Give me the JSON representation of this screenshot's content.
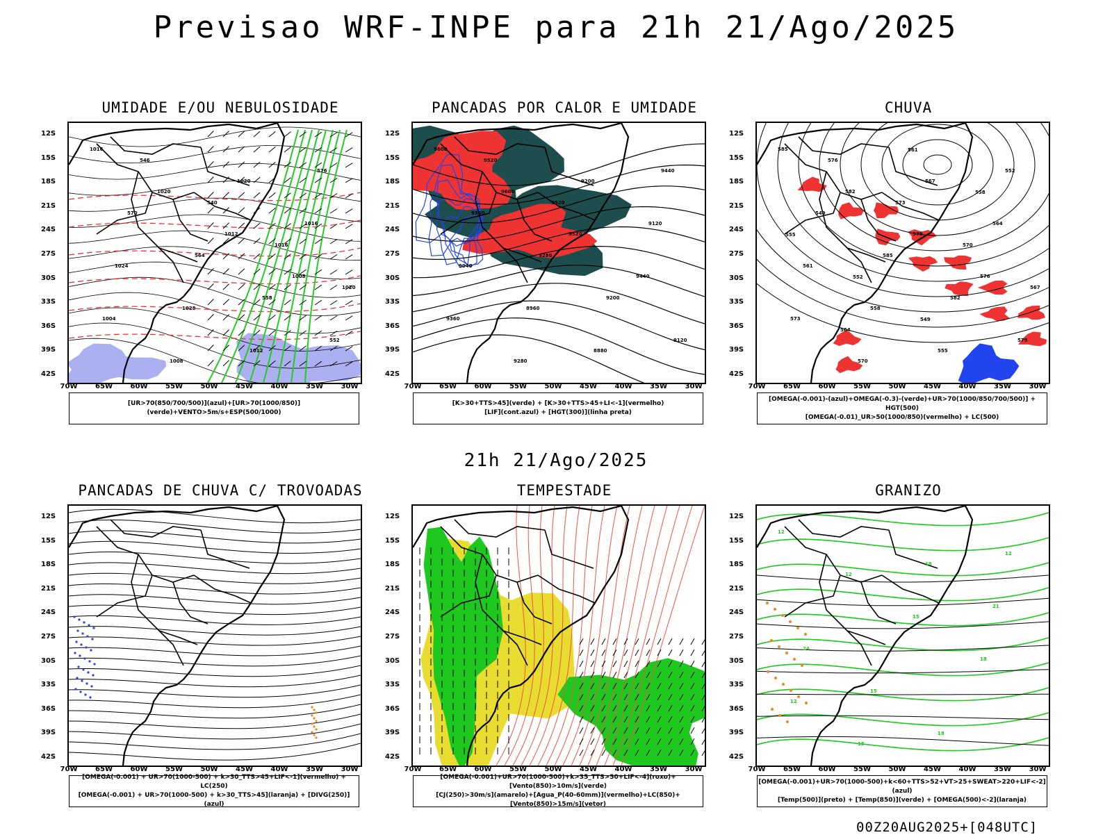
{
  "main_title": "Previsao WRF-INPE  para 21h 21/Ago/2025",
  "mid_title": "21h 21/Ago/2025",
  "footer": "00Z20AUG2025+[048UTC]",
  "axes": {
    "lat_labels": [
      "12S",
      "15S",
      "18S",
      "21S",
      "24S",
      "27S",
      "30S",
      "33S",
      "36S",
      "39S",
      "42S"
    ],
    "lon_labels": [
      "70W",
      "65W",
      "60W",
      "55W",
      "50W",
      "45W",
      "40W",
      "35W",
      "30W"
    ]
  },
  "colors": {
    "humid_blue": "#aab0f0",
    "humid_green": "#22cc22",
    "red": "#ee3333",
    "dark_teal": "#1e4d4d",
    "blue": "#2244ee",
    "orange": "#e88a22",
    "yellow": "#e8dc30",
    "green": "#1ec81e",
    "red_streamline": "#ee5544"
  },
  "panels": [
    {
      "title": "UMIDADE E/OU NEBULOSIDADE",
      "legend": [
        "[UR>70(850/700/500)](azul)+[UR>70(1000/850)](verde)+VENTO>5m/s+ESP(500/1000)"
      ],
      "contour_labels": [
        "1016",
        "1020",
        "1012",
        "1008",
        "1004",
        "1008",
        "1020",
        "1016",
        "1024",
        "1028",
        "1012",
        "576",
        "570",
        "564",
        "558",
        "552",
        "546",
        "540",
        "1016",
        "1020"
      ]
    },
    {
      "title": "PANCADAS POR CALOR E UMIDADE",
      "legend": [
        "[K>30+TTS>45](verde) + [K>30+TTS>45+LI<-1](vermelho)",
        "[LIF](cont.azul) + [HGT(300)](linha preta)"
      ],
      "contour_labels": [
        "9600",
        "9600",
        "9520",
        "9440",
        "9360",
        "9280",
        "9200",
        "9120",
        "9040",
        "8960",
        "8880",
        "9440",
        "9360",
        "9280",
        "9200",
        "9120",
        "9520",
        "9520"
      ]
    },
    {
      "title": "CHUVA",
      "legend": [
        "[OMEGA(-0.001)-(azul)+OMEGA(-0.3)-(verde)+UR>70(1000/850/700/500)] + HGT(500)",
        "[OMEGA(-0.01)_UR>50(1000/850)(vermelho) + LC(500)"
      ],
      "contour_labels": [
        "585",
        "582",
        "579",
        "576",
        "573",
        "570",
        "567",
        "564",
        "561",
        "558",
        "555",
        "552",
        "549",
        "585",
        "582",
        "579",
        "576",
        "573",
        "570",
        "567",
        "564",
        "561",
        "558",
        "555",
        "552",
        "549"
      ]
    },
    {
      "title": "PANCADAS DE CHUVA C/ TROVOADAS",
      "legend": [
        "[OMEGA(-0.001) + UR>70(1000-500) + k>30_TTS>45+LIF<-1](vermelho) + LC(250)",
        "[OMEGA(-0.001) + UR>70(1000-500) + k>30_TTS>45](laranja) + [DIVG(250)](azul)"
      ],
      "contour_labels": []
    },
    {
      "title": "TEMPESTADE",
      "legend": [
        "[OMEGA(-0.001)+UR>70(1000-500)+k>35_TTS>50+LIF<-4](roxo)+[Vento(850)>10m/s](verde)",
        "[CJ(250)>30m/s](amarelo)+[Agua_P(40-60mm)](vermelho)+LC(850)+[Vento(850)>15m/s](vetor)"
      ],
      "contour_labels": []
    },
    {
      "title": "GRANIZO",
      "legend": [
        "[OMEGA(-0.001)+UR>70(1000-500)+k<60+TTS>52+VT>25+SWEAT>220+LIF<-2](azul)",
        "[Temp(500)](preto) + [Temp(850)](verde) + [OMEGA(500)<-2](laranja)"
      ],
      "contour_labels": [
        "12",
        "12",
        "15",
        "18",
        "12",
        "15",
        "18",
        "21",
        "24",
        "15",
        "18",
        "12"
      ]
    }
  ]
}
